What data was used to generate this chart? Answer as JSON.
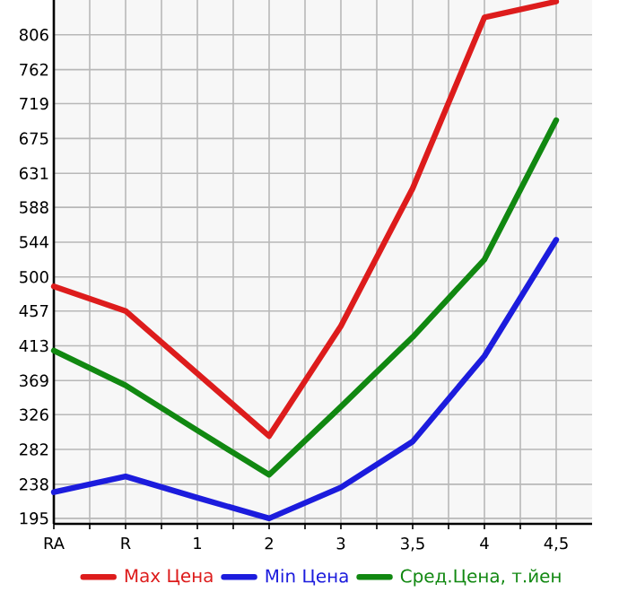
{
  "chart_data": {
    "type": "line",
    "categories": [
      "RA",
      "R",
      "1",
      "2",
      "3",
      "3,5",
      "4",
      "4,5"
    ],
    "series": [
      {
        "name": "Max Цена",
        "color": "#dd1c1c",
        "values": [
          488,
          457,
          378,
          299,
          438,
          612,
          828,
          848
        ]
      },
      {
        "name": "Min Цена",
        "color": "#1c1cdd",
        "values": [
          228,
          248,
          221,
          195,
          234,
          292,
          400,
          547
        ]
      },
      {
        "name": "Сред.Цена, т.йен",
        "color": "#118811",
        "values": [
          407,
          363,
          306,
          250,
          336,
          424,
          522,
          698
        ]
      }
    ],
    "ylim": [
      188,
      850
    ],
    "yticks": [
      195,
      238,
      282,
      326,
      369,
      413,
      457,
      500,
      544,
      588,
      631,
      675,
      719,
      762,
      806
    ],
    "grid": true,
    "legend": "bottom",
    "marker": "none",
    "line_style": "solid"
  }
}
